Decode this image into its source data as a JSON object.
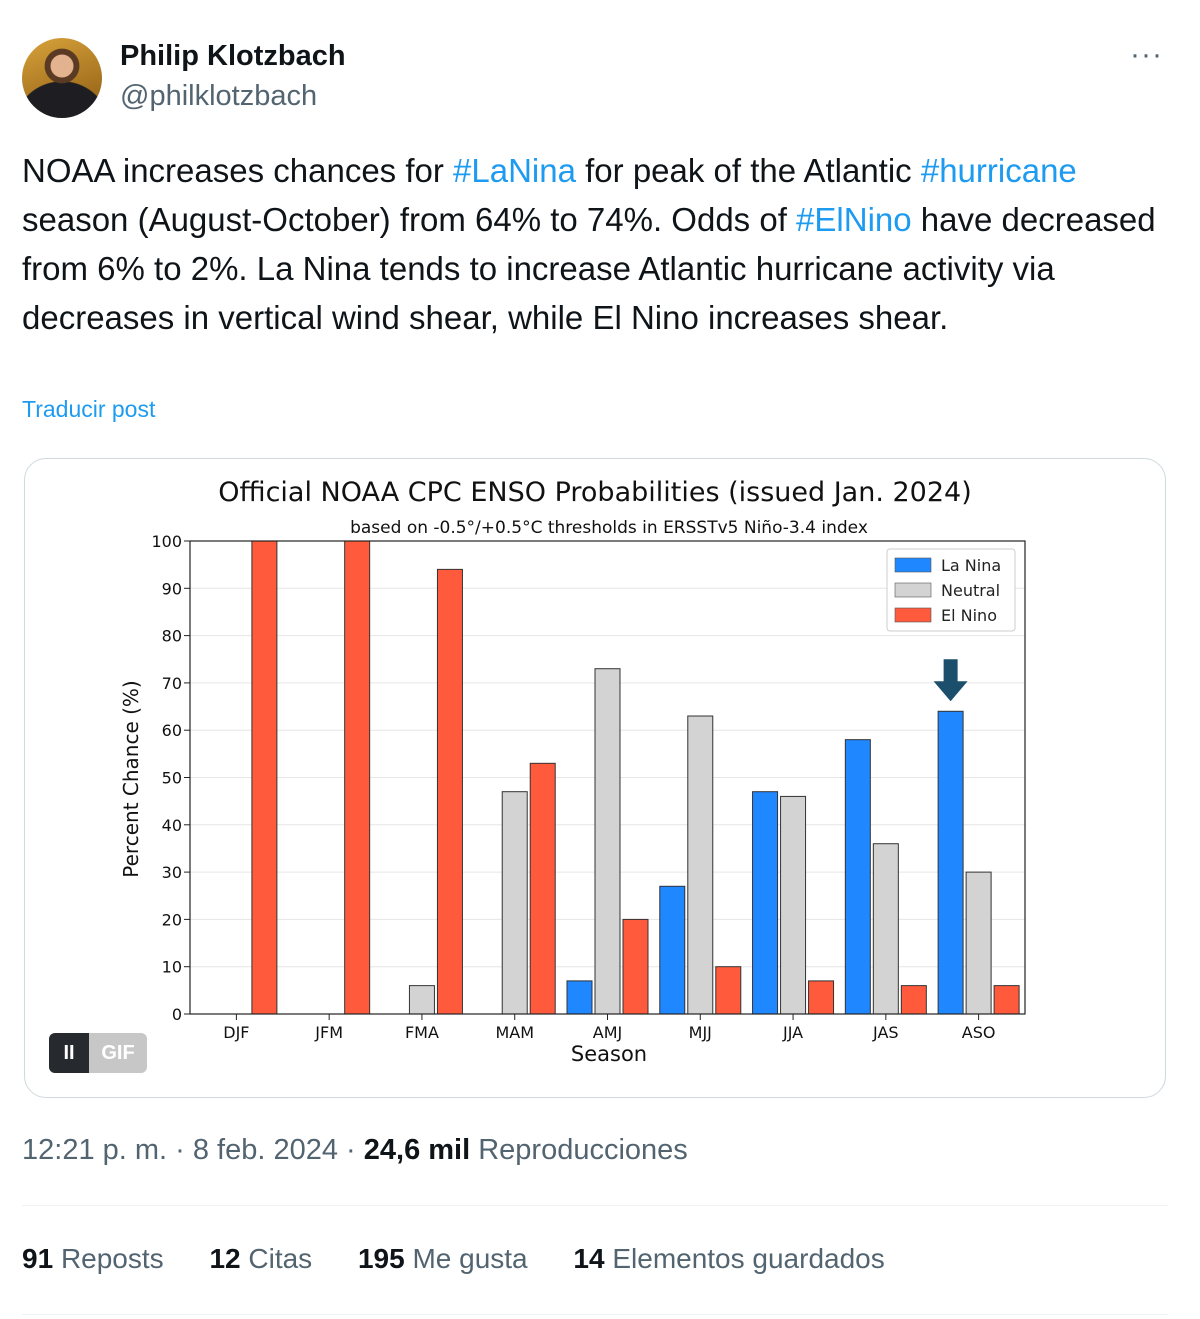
{
  "tweet": {
    "author_name": "Philip Klotzbach",
    "author_handle": "@philklotzbach",
    "text_parts": [
      "NOAA increases chances for ",
      "#LaNina",
      " for peak of the Atlantic ",
      "#hurricane",
      " season (August-October) from 64% to 74%. Odds of ",
      "#ElNino",
      " have decreased from 6% to 2%. La Nina tends to increase Atlantic hurricane activity via decreases in vertical wind shear, while El Nino increases shear."
    ],
    "translate_label": "Traducir post",
    "more_label": "···",
    "gif_pause_label": "II",
    "gif_label": "GIF",
    "timestamp": "12:21 p. m. · 8 feb. 2024 · ",
    "views_count": "24,6 mil",
    "views_label": "Reproducciones",
    "stats": [
      {
        "count": "91",
        "label": "Reposts"
      },
      {
        "count": "12",
        "label": "Citas"
      },
      {
        "count": "195",
        "label": "Me gusta"
      },
      {
        "count": "14",
        "label": "Elementos guardados"
      }
    ]
  },
  "chart_data": {
    "type": "bar",
    "title": "Official NOAA CPC ENSO Probabilities (issued Jan. 2024)",
    "subtitle": "based on -0.5°/+0.5°C thresholds in ERSSTv5 Niño-3.4 index",
    "xlabel": "Season",
    "ylabel": "Percent Chance (%)",
    "ylim": [
      0,
      100
    ],
    "yticks": [
      0,
      10,
      20,
      30,
      40,
      50,
      60,
      70,
      80,
      90,
      100
    ],
    "categories": [
      "DJF",
      "JFM",
      "FMA",
      "MAM",
      "AMJ",
      "MJJ",
      "JJA",
      "JAS",
      "ASO"
    ],
    "series": [
      {
        "name": "La Nina",
        "color": "#1f87ff",
        "values": [
          0,
          0,
          0,
          0,
          7,
          27,
          47,
          58,
          64
        ]
      },
      {
        "name": "Neutral",
        "color": "#d3d3d3",
        "values": [
          0,
          0,
          6,
          47,
          73,
          63,
          46,
          36,
          30
        ]
      },
      {
        "name": "El Nino",
        "color": "#ff5a3c",
        "values": [
          100,
          100,
          94,
          53,
          20,
          10,
          7,
          6,
          6
        ]
      }
    ],
    "legend_position": "top-right",
    "grid": "horizontal",
    "annotation": {
      "type": "arrow-down",
      "category": "ASO",
      "color": "#1b4f6b"
    }
  }
}
